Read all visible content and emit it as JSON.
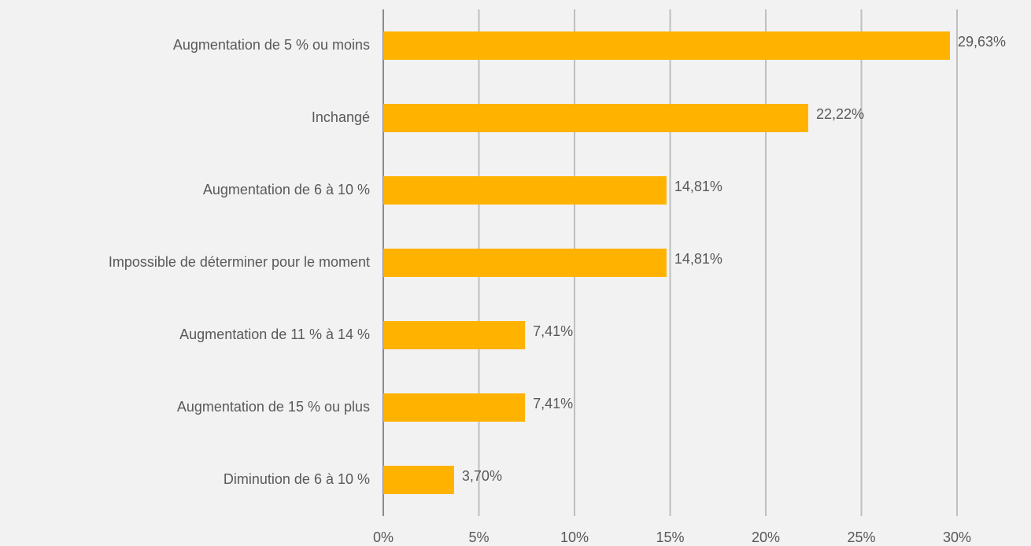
{
  "chart_data": {
    "type": "bar",
    "orientation": "horizontal",
    "categories": [
      "Augmentation de 5 % ou moins",
      "Inchangé",
      "Augmentation de 6 à 10 %",
      "Impossible de déterminer pour le moment",
      "Augmentation de 11 % à 14 %",
      "Augmentation de 15 % ou plus",
      "Diminution de 6 à 10 %"
    ],
    "values": [
      29.63,
      22.22,
      14.81,
      14.81,
      7.41,
      7.41,
      3.7
    ],
    "value_labels": [
      "29,63%",
      "22,22%",
      "14,81%",
      "14,81%",
      "7,41%",
      "7,41%",
      "3,70%"
    ],
    "color": "#ffb300",
    "xlim": [
      0,
      30
    ],
    "xticks": [
      {
        "value": 0,
        "label": "0%"
      },
      {
        "value": 5,
        "label": "5%"
      },
      {
        "value": 10,
        "label": "10%"
      },
      {
        "value": 15,
        "label": "15%"
      },
      {
        "value": 20,
        "label": "20%"
      },
      {
        "value": 25,
        "label": "25%"
      },
      {
        "value": 30,
        "label": "30%"
      }
    ],
    "grid": true
  }
}
